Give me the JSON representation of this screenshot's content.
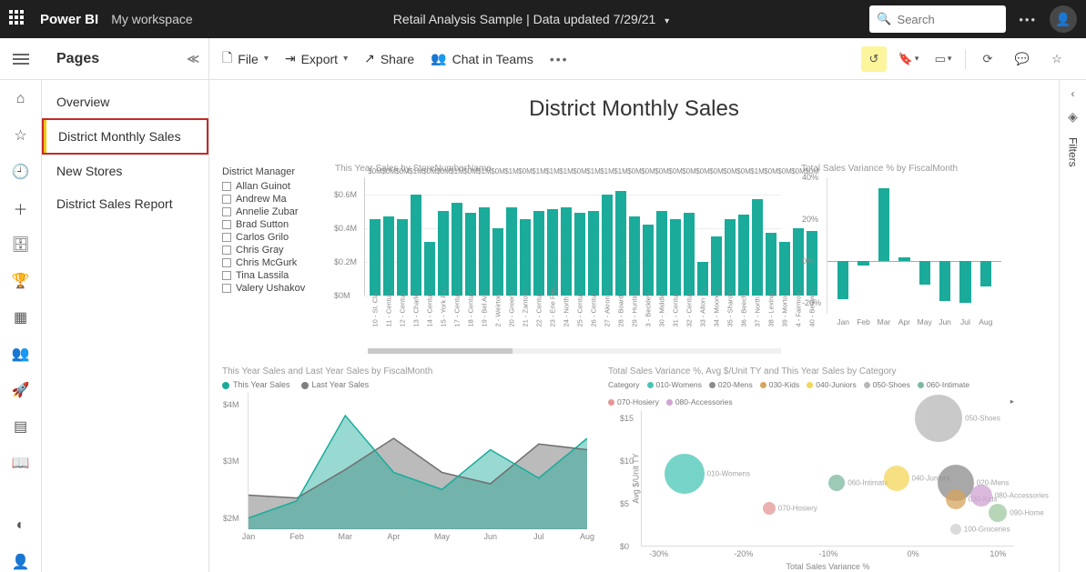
{
  "topbar": {
    "brand": "Power BI",
    "workspace": "My workspace",
    "center": "Retail Analysis Sample  |  Data updated 7/29/21",
    "search_placeholder": "Search"
  },
  "toolbar": {
    "pages_head": "Pages",
    "file": "File",
    "export": "Export",
    "share": "Share",
    "chat": "Chat in Teams"
  },
  "pages": [
    "Overview",
    "District Monthly Sales",
    "New Stores",
    "District Sales Report"
  ],
  "active_page_index": 1,
  "canvas_title": "District Monthly Sales",
  "district_managers": {
    "title": "District Manager",
    "items": [
      "Allan Guinot",
      "Andrew Ma",
      "Annelie Zubar",
      "Brad Sutton",
      "Carlos Grilo",
      "Chris Gray",
      "Chris McGurk",
      "Tina Lassila",
      "Valery Ushakov"
    ]
  },
  "bar_chart": {
    "title": "This Year Sales by StoreNumberName",
    "ylim": 0.7,
    "yticks": [
      "$0M",
      "$0.2M",
      "$0.4M",
      "$0.6M"
    ],
    "bar_color": "#1aab9b",
    "label_color": "#888888",
    "bars": [
      {
        "x": "10 - St. Cla…",
        "v": 0.45,
        "lbl": "$0M"
      },
      {
        "x": "11 - Centur…",
        "v": 0.47,
        "lbl": "$0M"
      },
      {
        "x": "12 - Centur…",
        "v": 0.45,
        "lbl": "$0M"
      },
      {
        "x": "13 - Charle…",
        "v": 0.6,
        "lbl": "$1M"
      },
      {
        "x": "14 - Centur…",
        "v": 0.32,
        "lbl": "$0M"
      },
      {
        "x": "15 - York Fa…",
        "v": 0.5,
        "lbl": "$0M"
      },
      {
        "x": "17 - Centur…",
        "v": 0.55,
        "lbl": "$1M"
      },
      {
        "x": "18 - Centur…",
        "v": 0.49,
        "lbl": "$0M"
      },
      {
        "x": "19 - Bel Air…",
        "v": 0.52,
        "lbl": "$1M"
      },
      {
        "x": "2 - Weirton…",
        "v": 0.4,
        "lbl": "$0M"
      },
      {
        "x": "20 - Greens…",
        "v": 0.52,
        "lbl": "$1M"
      },
      {
        "x": "21 - Zanton…",
        "v": 0.45,
        "lbl": "$0M"
      },
      {
        "x": "22 - Centur…",
        "v": 0.5,
        "lbl": "$1M"
      },
      {
        "x": "23 - Erie Fas…",
        "v": 0.51,
        "lbl": "$1M"
      },
      {
        "x": "24 - North…",
        "v": 0.52,
        "lbl": "$1M"
      },
      {
        "x": "25 - Centur…",
        "v": 0.49,
        "lbl": "$0M"
      },
      {
        "x": "26 - Centur…",
        "v": 0.5,
        "lbl": "$1M"
      },
      {
        "x": "27 - Akron F…",
        "v": 0.6,
        "lbl": "$1M"
      },
      {
        "x": "28 - Board…",
        "v": 0.62,
        "lbl": "$1M"
      },
      {
        "x": "29 - Huntin…",
        "v": 0.47,
        "lbl": "$0M"
      },
      {
        "x": "3 - Beckley…",
        "v": 0.42,
        "lbl": "$0M"
      },
      {
        "x": "30 - Middle…",
        "v": 0.5,
        "lbl": "$0M"
      },
      {
        "x": "31 - Centur…",
        "v": 0.45,
        "lbl": "$0M"
      },
      {
        "x": "32 - Centur…",
        "v": 0.49,
        "lbl": "$0M"
      },
      {
        "x": "33 - Alton F…",
        "v": 0.2,
        "lbl": "$0M"
      },
      {
        "x": "34 - Moore…",
        "v": 0.35,
        "lbl": "$0M"
      },
      {
        "x": "35 - Sharon…",
        "v": 0.45,
        "lbl": "$0M"
      },
      {
        "x": "36 - Beech…",
        "v": 0.48,
        "lbl": "$0M"
      },
      {
        "x": "37 - North…",
        "v": 0.57,
        "lbl": "$1M"
      },
      {
        "x": "38 - Lexing…",
        "v": 0.37,
        "lbl": "$0M"
      },
      {
        "x": "39 - Morto…",
        "v": 0.32,
        "lbl": "$0M"
      },
      {
        "x": "4 - Fairmon…",
        "v": 0.4,
        "lbl": "$0M"
      },
      {
        "x": "40 - Beaver…",
        "v": 0.38,
        "lbl": "$0M"
      }
    ]
  },
  "variance_chart": {
    "title": "Total Sales Variance % by FiscalMonth",
    "ylim": [
      -25,
      40
    ],
    "zero": 0,
    "yticks": [
      {
        "v": 40,
        "l": "40%"
      },
      {
        "v": 20,
        "l": "20%"
      },
      {
        "v": 0,
        "l": "0%"
      },
      {
        "v": -20,
        "l": "-20%"
      }
    ],
    "bar_color": "#1aab9b",
    "bars": [
      {
        "x": "Jan",
        "v": -18
      },
      {
        "x": "Feb",
        "v": -2
      },
      {
        "x": "Mar",
        "v": 35
      },
      {
        "x": "Apr",
        "v": 2
      },
      {
        "x": "May",
        "v": -11
      },
      {
        "x": "Jun",
        "v": -19
      },
      {
        "x": "Jul",
        "v": -20
      },
      {
        "x": "Aug",
        "v": -12
      }
    ]
  },
  "area_chart": {
    "title": "This Year Sales and Last Year Sales by FiscalMonth",
    "legend": [
      {
        "label": "This Year Sales",
        "color": "#1aab9b"
      },
      {
        "label": "Last Year Sales",
        "color": "#7f7f7f"
      }
    ],
    "yticks": [
      {
        "v": 4,
        "l": "$4M"
      },
      {
        "v": 3,
        "l": "$3M"
      },
      {
        "v": 2,
        "l": "$2M"
      }
    ],
    "ylim": [
      1.8,
      4.2
    ],
    "months": [
      "Jan",
      "Feb",
      "Mar",
      "Apr",
      "May",
      "Jun",
      "Jul",
      "Aug"
    ],
    "ty": [
      2.0,
      2.3,
      3.8,
      2.8,
      2.5,
      3.2,
      2.7,
      3.4
    ],
    "ly": [
      2.4,
      2.35,
      2.85,
      3.4,
      2.8,
      2.6,
      3.3,
      3.2
    ],
    "fill_ty": "rgba(26,171,155,0.45)",
    "stroke_ty": "#1aab9b",
    "fill_ly": "rgba(120,120,120,0.5)",
    "stroke_ly": "#6f6f6f"
  },
  "scatter": {
    "title": "Total Sales Variance %, Avg $/Unit TY and This Year Sales by Category",
    "legend_label": "Category",
    "legend": [
      {
        "l": "010-Womens",
        "c": "#49c5b6"
      },
      {
        "l": "020-Mens",
        "c": "#8c8c8c"
      },
      {
        "l": "030-Kids",
        "c": "#d7a55e"
      },
      {
        "l": "040-Juniors",
        "c": "#f3d65a"
      },
      {
        "l": "050-Shoes",
        "c": "#b8b8b8"
      },
      {
        "l": "060-Intimate",
        "c": "#7db8a0"
      },
      {
        "l": "070-Hosiery",
        "c": "#e59696"
      },
      {
        "l": "080-Accessories",
        "c": "#cfa3d4"
      }
    ],
    "xlim": [
      -32,
      12
    ],
    "ylim": [
      0,
      16
    ],
    "xticks": [
      {
        "v": -30,
        "l": "-30%"
      },
      {
        "v": -20,
        "l": "-20%"
      },
      {
        "v": -10,
        "l": "-10%"
      },
      {
        "v": 0,
        "l": "0%"
      },
      {
        "v": 10,
        "l": "10%"
      }
    ],
    "yticks": [
      {
        "v": 0,
        "l": "$0"
      },
      {
        "v": 5,
        "l": "$5"
      },
      {
        "v": 10,
        "l": "$10"
      },
      {
        "v": 15,
        "l": "$15"
      }
    ],
    "ylab": "Avg $/Unit TY",
    "xlab": "Total Sales Variance %",
    "points": [
      {
        "l": "050-Shoes",
        "x": 3,
        "y": 15,
        "r": 26,
        "c": "#b8b8b8"
      },
      {
        "l": "010-Womens",
        "x": -27,
        "y": 8.5,
        "r": 22,
        "c": "#49c5b6"
      },
      {
        "l": "060-Intimate",
        "x": -9,
        "y": 7.5,
        "r": 9,
        "c": "#7db8a0"
      },
      {
        "l": "040-Juniors",
        "x": -2,
        "y": 8,
        "r": 14,
        "c": "#f3d65a"
      },
      {
        "l": "020-Mens",
        "x": 5,
        "y": 7.5,
        "r": 20,
        "c": "#8c8c8c"
      },
      {
        "l": "030-Kids",
        "x": 5,
        "y": 5.5,
        "r": 11,
        "c": "#d7a55e"
      },
      {
        "l": "080-Accessories",
        "x": 8,
        "y": 6,
        "r": 12,
        "c": "#cfa3d4"
      },
      {
        "l": "070-Hosiery",
        "x": -17,
        "y": 4.5,
        "r": 7,
        "c": "#e59696"
      },
      {
        "l": "100-Groceries",
        "x": 5,
        "y": 2,
        "r": 6,
        "c": "#d0d0d0"
      },
      {
        "l": "090-Home",
        "x": 10,
        "y": 4,
        "r": 10,
        "c": "#a0c8a0"
      }
    ]
  },
  "filters_label": "Filters"
}
